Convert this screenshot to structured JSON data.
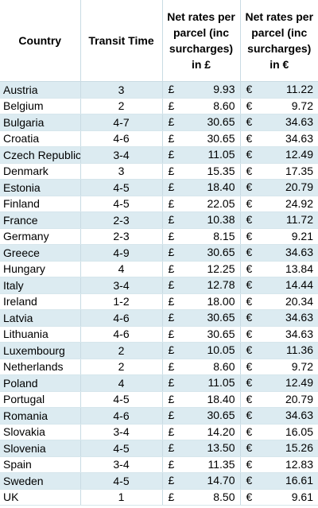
{
  "headers": {
    "country": "Country",
    "transit": "Transit Time",
    "gbp": "Net rates per parcel (inc surcharges) in £",
    "eur": "Net rates per parcel (inc surcharges) in €"
  },
  "currency": {
    "gbp_symbol": "£",
    "eur_symbol": "€"
  },
  "colors": {
    "band": "#dcebf1",
    "grid": "#c9dbe3"
  },
  "rows": [
    {
      "country": "Austria",
      "transit": "3",
      "gbp": "9.93",
      "eur": "11.22"
    },
    {
      "country": "Belgium",
      "transit": "2",
      "gbp": "8.60",
      "eur": "9.72"
    },
    {
      "country": "Bulgaria",
      "transit": "4-7",
      "gbp": "30.65",
      "eur": "34.63"
    },
    {
      "country": "Croatia",
      "transit": "4-6",
      "gbp": "30.65",
      "eur": "34.63"
    },
    {
      "country": "Czech Republic",
      "transit": "3-4",
      "gbp": "11.05",
      "eur": "12.49"
    },
    {
      "country": "Denmark",
      "transit": "3",
      "gbp": "15.35",
      "eur": "17.35"
    },
    {
      "country": "Estonia",
      "transit": "4-5",
      "gbp": "18.40",
      "eur": "20.79"
    },
    {
      "country": "Finland",
      "transit": "4-5",
      "gbp": "22.05",
      "eur": "24.92"
    },
    {
      "country": "France",
      "transit": "2-3",
      "gbp": "10.38",
      "eur": "11.72"
    },
    {
      "country": "Germany",
      "transit": "2-3",
      "gbp": "8.15",
      "eur": "9.21"
    },
    {
      "country": "Greece",
      "transit": "4-9",
      "gbp": "30.65",
      "eur": "34.63"
    },
    {
      "country": "Hungary",
      "transit": "4",
      "gbp": "12.25",
      "eur": "13.84"
    },
    {
      "country": "Italy",
      "transit": "3-4",
      "gbp": "12.78",
      "eur": "14.44"
    },
    {
      "country": "Ireland",
      "transit": "1-2",
      "gbp": "18.00",
      "eur": "20.34"
    },
    {
      "country": "Latvia",
      "transit": "4-6",
      "gbp": "30.65",
      "eur": "34.63"
    },
    {
      "country": "Lithuania",
      "transit": "4-6",
      "gbp": "30.65",
      "eur": "34.63"
    },
    {
      "country": "Luxembourg",
      "transit": "2",
      "gbp": "10.05",
      "eur": "11.36"
    },
    {
      "country": "Netherlands",
      "transit": "2",
      "gbp": "8.60",
      "eur": "9.72"
    },
    {
      "country": "Poland",
      "transit": "4",
      "gbp": "11.05",
      "eur": "12.49"
    },
    {
      "country": "Portugal",
      "transit": "4-5",
      "gbp": "18.40",
      "eur": "20.79"
    },
    {
      "country": "Romania",
      "transit": "4-6",
      "gbp": "30.65",
      "eur": "34.63"
    },
    {
      "country": "Slovakia",
      "transit": "3-4",
      "gbp": "14.20",
      "eur": "16.05"
    },
    {
      "country": "Slovenia",
      "transit": "4-5",
      "gbp": "13.50",
      "eur": "15.26"
    },
    {
      "country": "Spain",
      "transit": "3-4",
      "gbp": "11.35",
      "eur": "12.83"
    },
    {
      "country": "Sweden",
      "transit": "4-5",
      "gbp": "14.70",
      "eur": "16.61"
    },
    {
      "country": "UK",
      "transit": "1",
      "gbp": "8.50",
      "eur": "9.61"
    }
  ]
}
